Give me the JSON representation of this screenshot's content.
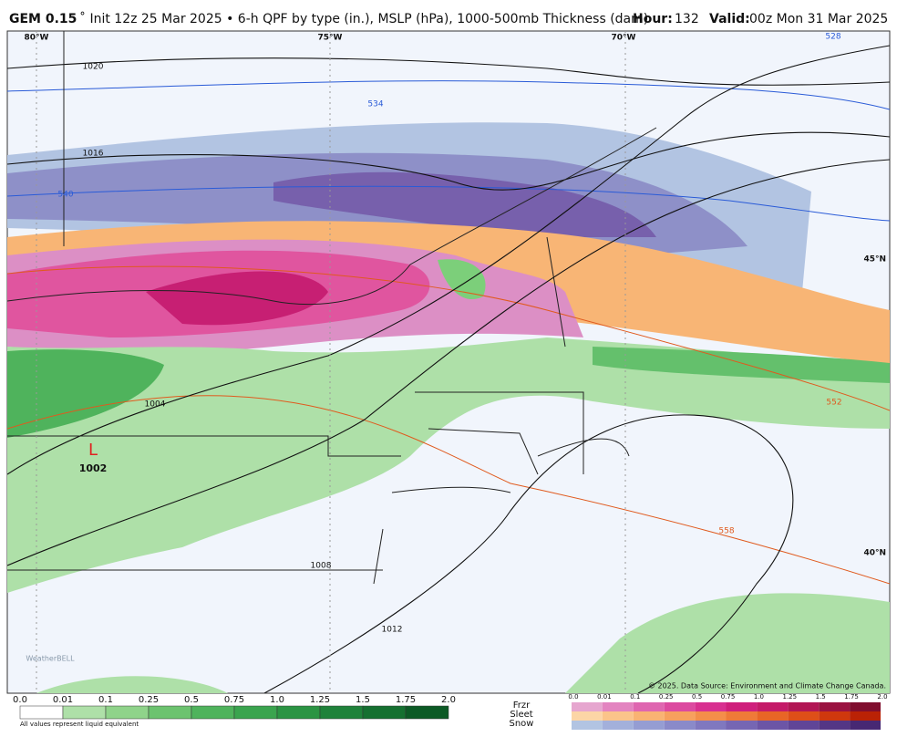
{
  "header": {
    "model": "GEM 0.15",
    "title": "˚ Init 12z 25 Mar 2025 • 6-h QPF by type (in.), MSLP (hPa), 1000-500mb Thickness (dam)",
    "hour_label": "Hour:",
    "hour": "132",
    "valid_label": "Valid:",
    "valid": "00z Mon 31 Mar 2025"
  },
  "map": {
    "longitudes": [
      "80°W",
      "75°W",
      "70°W"
    ],
    "latitudes": [
      "45°N",
      "40°N"
    ],
    "isobars": [
      "1020",
      "1016",
      "1004",
      "1008",
      "1012"
    ],
    "thickness": [
      "534",
      "540",
      "528",
      "552",
      "558"
    ],
    "low": {
      "symbol": "L",
      "pressure": "1002"
    },
    "credit": "© 2025. Data Source: Environment and Climate Change Canada.",
    "logo": "WeatherBELL"
  },
  "legend": {
    "rain_ticks": [
      "0.0",
      "0.01",
      "0.1",
      "0.25",
      "0.5",
      "0.75",
      "1.0",
      "1.25",
      "1.5",
      "1.75",
      "2.0"
    ],
    "note": "All values represent liquid equivalent",
    "types": [
      "Frzr",
      "Sleet",
      "Snow"
    ],
    "mixed_ticks": [
      "0.0",
      "0.01",
      "0.1",
      "0.25",
      "0.5",
      "0.75",
      "1.0",
      "1.25",
      "1.5",
      "1.75",
      "2.0"
    ]
  }
}
